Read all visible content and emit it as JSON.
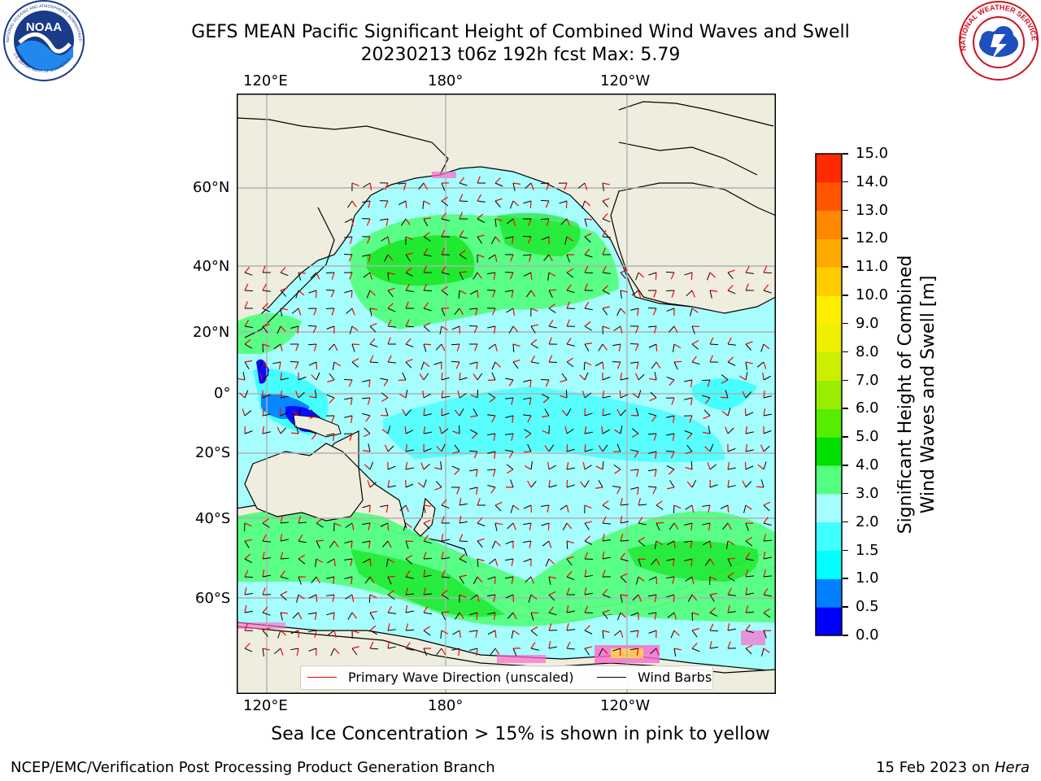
{
  "title": {
    "line1": "GEFS MEAN Pacific Significant Height of Combined Wind Waves and Swell",
    "line2": "20230213 t06z 192h fcst   Max: 5.79"
  },
  "logos": {
    "left": {
      "name": "NOAA",
      "ring_text": "NATIONAL OCEANIC AND ATMOSPHERIC ADMINISTRATION",
      "bottom_text": "U.S. DEPARTMENT OF COMMERCE"
    },
    "right": {
      "ring_text": "NATIONAL WEATHER SERVICE"
    }
  },
  "map": {
    "top_lon_labels": [
      "120°E",
      "180°",
      "120°W"
    ],
    "bottom_lon_labels": [
      "120°E",
      "180°",
      "120°W"
    ],
    "lat_labels": [
      "60°N",
      "40°N",
      "20°N",
      "0°",
      "20°S",
      "40°S",
      "60°S"
    ],
    "land_color": "#efedde",
    "ocean_base_color": "#a6fdfd"
  },
  "legend": {
    "items": [
      {
        "label": "Primary Wave Direction (unscaled)",
        "color": "#ff0000"
      },
      {
        "label": "Wind Barbs",
        "color": "#000000"
      }
    ]
  },
  "colorbar": {
    "label_line1": "Significant Height of Combined",
    "label_line2": "Wind Waves and Swell [m]",
    "ticks": [
      "0.0",
      "0.5",
      "1.0",
      "1.5",
      "2.0",
      "3.0",
      "4.0",
      "5.0",
      "6.0",
      "7.0",
      "8.0",
      "9.0",
      "10.0",
      "11.0",
      "12.0",
      "13.0",
      "14.0",
      "15.0"
    ],
    "colors": [
      "#0000ff",
      "#0080ff",
      "#00ffff",
      "#40ffff",
      "#a6fdfd",
      "#55ff80",
      "#00e000",
      "#55ee00",
      "#99ee00",
      "#ccee00",
      "#eeee00",
      "#ffee00",
      "#ffcc00",
      "#ffaa00",
      "#ff8800",
      "#ff5500",
      "#ff2a00",
      "#ff0000"
    ]
  },
  "note": "Sea Ice Concentration > 15% is shown in pink to yellow",
  "footer": {
    "left": "NCEP/EMC/Verification Post Processing Product Generation Branch",
    "date": "15 Feb 2023 on ",
    "host": "Hera"
  }
}
